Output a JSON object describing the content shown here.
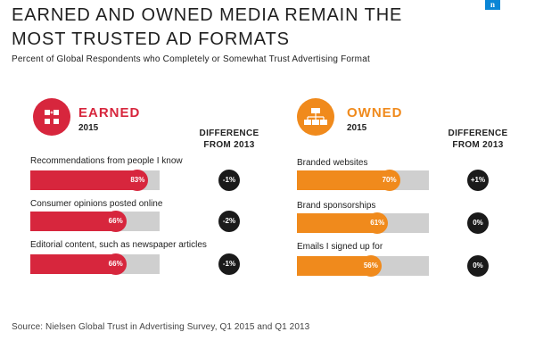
{
  "header": {
    "title": "EARNED AND OWNED MEDIA REMAIN THE MOST TRUSTED AD FORMATS",
    "subtitle": "Percent of Global Respondents who Completely or Somewhat Trust Advertising Format",
    "logo_text": "n",
    "logo_color": "#0a86d6"
  },
  "footer": {
    "source": "Source: Nielsen Global Trust in Advertising Survey, Q1 2015 and Q1 2013"
  },
  "chart_data": [
    {
      "type": "bar",
      "orientation": "horizontal",
      "title": "EARNED",
      "subtitle": "2015",
      "diff_header": "DIFFERENCE FROM 2013",
      "icon": "people-plus-icon",
      "color": "#d7263d",
      "unit": "%",
      "xlim": [
        0,
        100
      ],
      "categories": [
        "Recommendations from people I know",
        "Consumer opinions posted online",
        "Editorial content, such as newspaper articles"
      ],
      "values": [
        83,
        66,
        66
      ],
      "value_labels": [
        "83%",
        "66%",
        "66%"
      ],
      "differences": [
        -1,
        -2,
        -1
      ],
      "difference_labels": [
        "-1%",
        "-2%",
        "-1%"
      ]
    },
    {
      "type": "bar",
      "orientation": "horizontal",
      "title": "OWNED",
      "subtitle": "2015",
      "diff_header": "DIFFERENCE FROM 2013",
      "icon": "org-chart-icon",
      "color": "#f08a1c",
      "unit": "%",
      "xlim": [
        0,
        100
      ],
      "categories": [
        "Branded websites",
        "Brand sponsorships",
        "Emails I signed up for"
      ],
      "values": [
        70,
        61,
        56
      ],
      "value_labels": [
        "70%",
        "61%",
        "56%"
      ],
      "differences": [
        1,
        0,
        0
      ],
      "difference_labels": [
        "+1%",
        "0%",
        "0%"
      ]
    }
  ]
}
